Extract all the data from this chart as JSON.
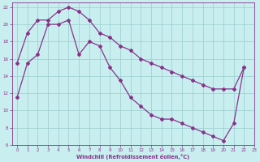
{
  "xlabel": "Windchill (Refroidissement éolien,°C)",
  "bg_color": "#c8eef0",
  "line_color": "#883388",
  "grid_color": "#99cccc",
  "xlim": [
    -0.5,
    23
  ],
  "ylim": [
    6,
    22.5
  ],
  "xticks": [
    0,
    1,
    2,
    3,
    4,
    5,
    6,
    7,
    8,
    9,
    10,
    11,
    12,
    13,
    14,
    15,
    16,
    17,
    18,
    19,
    20,
    21,
    22,
    23
  ],
  "yticks": [
    6,
    8,
    10,
    12,
    14,
    16,
    18,
    20,
    22
  ],
  "line1_x": [
    0,
    1,
    2,
    3,
    4,
    5,
    6,
    7,
    8,
    9,
    10,
    11,
    12,
    13,
    14,
    15,
    16,
    17,
    18,
    19,
    20,
    21,
    22
  ],
  "line1_y": [
    15.5,
    19.0,
    20.5,
    20.5,
    21.5,
    22.0,
    21.5,
    20.5,
    19.0,
    18.5,
    17.5,
    17.0,
    16.0,
    15.5,
    15.0,
    14.5,
    14.0,
    13.5,
    13.0,
    12.5,
    12.5,
    12.5,
    15.0
  ],
  "line2_x": [
    0,
    1,
    2,
    3,
    4,
    5,
    6,
    7,
    8,
    9,
    10,
    11,
    12,
    13,
    14,
    15,
    16,
    17,
    18,
    19,
    20,
    21,
    22
  ],
  "line2_y": [
    11.5,
    15.5,
    16.5,
    20.0,
    20.0,
    20.5,
    16.5,
    18.0,
    17.5,
    15.0,
    13.5,
    11.5,
    10.5,
    9.5,
    9.0,
    9.0,
    8.5,
    8.0,
    7.5,
    7.0,
    6.5,
    8.5,
    15.0
  ],
  "marker": "D",
  "markersize": 2.0,
  "linewidth": 0.9
}
